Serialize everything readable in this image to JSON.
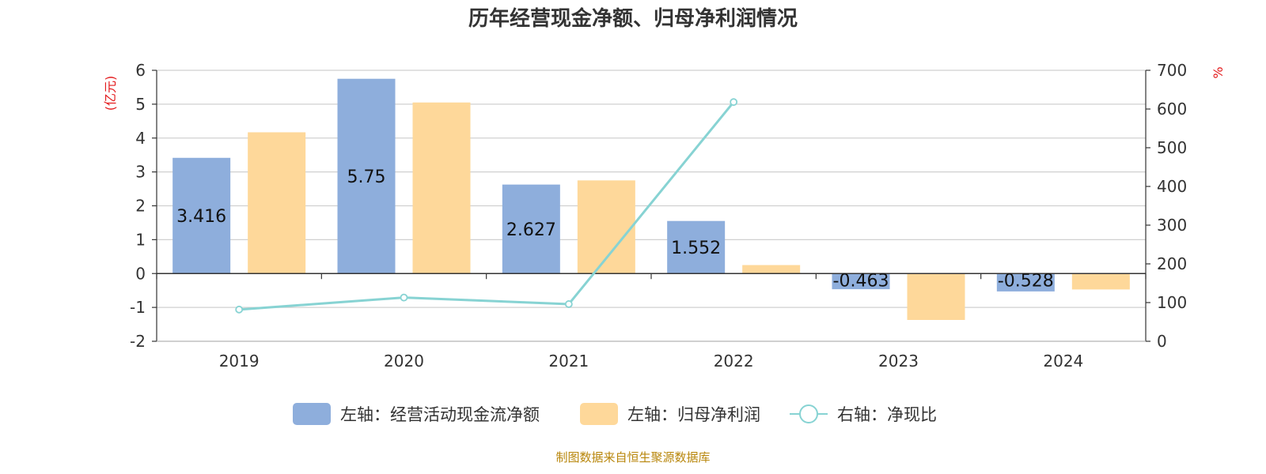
{
  "chart_data": {
    "type": "bar",
    "title": "历年经营现金净额、归母净利润情况",
    "categories": [
      "2019",
      "2020",
      "2021",
      "2022",
      "2023",
      "2024"
    ],
    "left_axis": {
      "unit": "(亿元)",
      "min": -2,
      "max": 6,
      "ticks": [
        "-2",
        "-1",
        "0",
        "1",
        "2",
        "3",
        "4",
        "5",
        "6"
      ]
    },
    "right_axis": {
      "unit": "%",
      "min": 0,
      "max": 700,
      "ticks": [
        "0",
        "100",
        "200",
        "300",
        "400",
        "500",
        "600",
        "700"
      ]
    },
    "series": [
      {
        "name": "左轴：经营活动现金流净额",
        "type": "bar",
        "axis": "left",
        "color": "#8eaedc",
        "values": [
          3.416,
          5.75,
          2.627,
          1.552,
          -0.463,
          -0.528
        ],
        "labels": [
          "3.416",
          "5.75",
          "2.627",
          "1.552",
          "-0.463",
          "-0.528"
        ]
      },
      {
        "name": "左轴：归母净利润",
        "type": "bar",
        "axis": "left",
        "color": "#fed89a",
        "values": [
          4.17,
          5.05,
          2.75,
          0.25,
          -1.37,
          -0.47
        ]
      },
      {
        "name": "右轴：净现比",
        "type": "line",
        "axis": "right",
        "color": "#87d3d3",
        "values": [
          82,
          113,
          96,
          618,
          null,
          null
        ]
      }
    ],
    "grid": true,
    "legend_position": "bottom"
  },
  "source_note": "制图数据来自恒生聚源数据库"
}
